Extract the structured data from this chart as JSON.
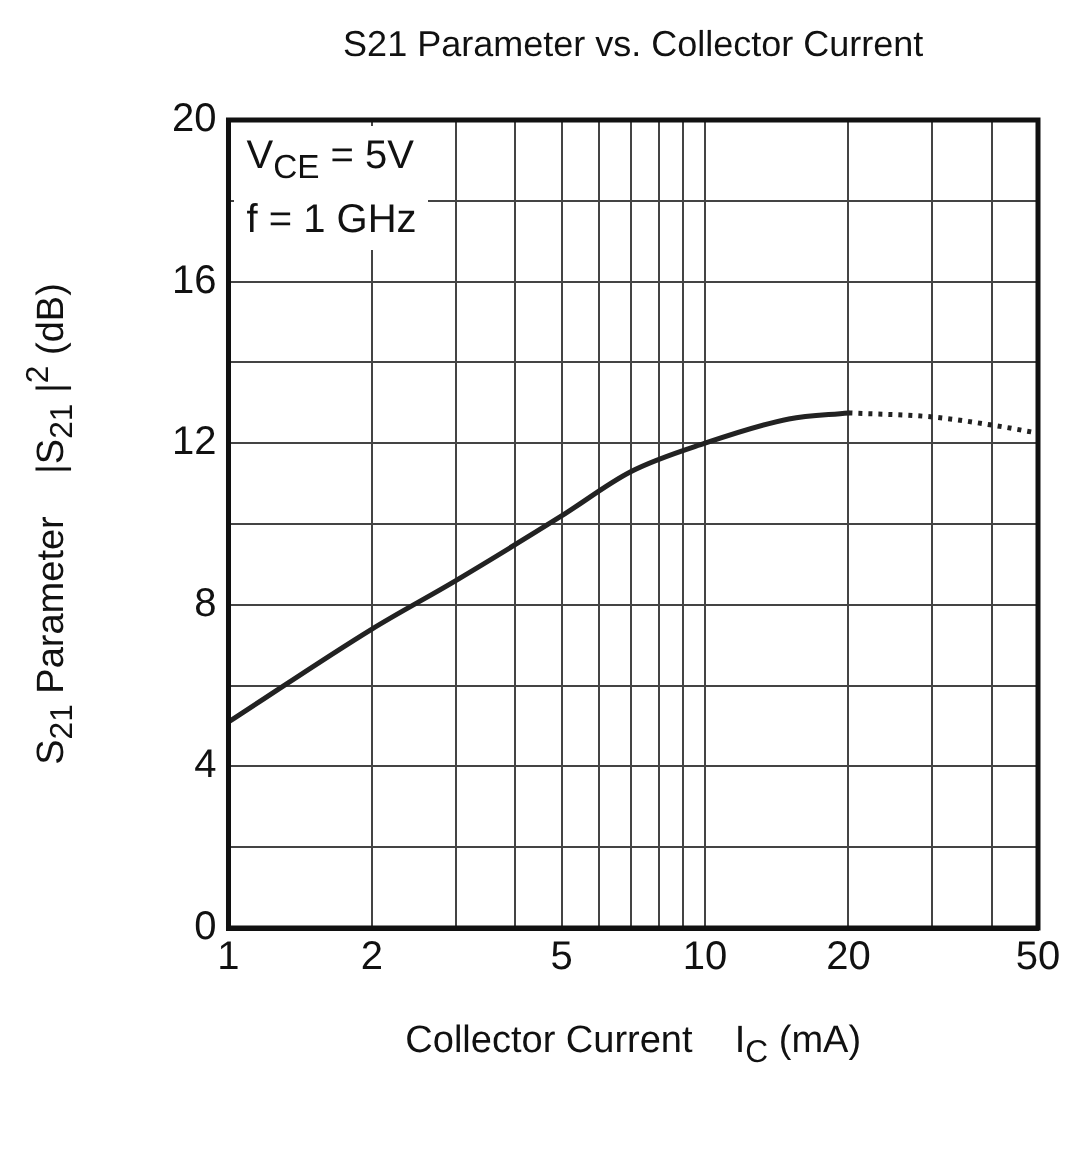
{
  "chart_data": {
    "type": "line",
    "title": "S21 Parameter vs. Collector Current",
    "xlabel": "Collector Current    I$_{C}$ (mA)",
    "ylabel": "S$_{21}$ Parameter    |S$_{21}$ |$^{2}$ (dB)",
    "annotations": [
      "V$_{CE}$ = 5V",
      "f = 1 GHz"
    ],
    "log": "x",
    "grid": true,
    "legend": false,
    "marker": "none",
    "xlim": [
      1,
      50
    ],
    "xticks": [
      1,
      2,
      {
        "value": 3,
        "label": null
      },
      {
        "value": 4,
        "label": null
      },
      5,
      {
        "value": 6,
        "label": null
      },
      {
        "value": 7,
        "label": null
      },
      {
        "value": 8,
        "label": null
      },
      {
        "value": 9,
        "label": null
      },
      10,
      20,
      {
        "value": 30,
        "label": null
      },
      {
        "value": 40,
        "label": null
      },
      50
    ],
    "ylim": [
      0,
      20
    ],
    "yticks": [
      0,
      {
        "value": 2,
        "label": null
      },
      4,
      {
        "value": 6,
        "label": null
      },
      8,
      {
        "value": 10,
        "label": null
      },
      12,
      {
        "value": 14,
        "label": null
      },
      16,
      {
        "value": 18,
        "label": null
      },
      20
    ],
    "series": [
      {
        "color": "#222222",
        "line_style": "solid",
        "x": [
          1,
          2,
          3,
          5,
          7,
          10,
          15,
          20
        ],
        "values": [
          5.1,
          7.4,
          8.6,
          10.2,
          11.3,
          12.0,
          12.6,
          12.75
        ]
      },
      {
        "color": "#222222",
        "line_style": "dotted",
        "x": [
          20,
          30,
          40,
          50
        ],
        "values": [
          12.75,
          12.65,
          12.45,
          12.25
        ]
      }
    ]
  }
}
